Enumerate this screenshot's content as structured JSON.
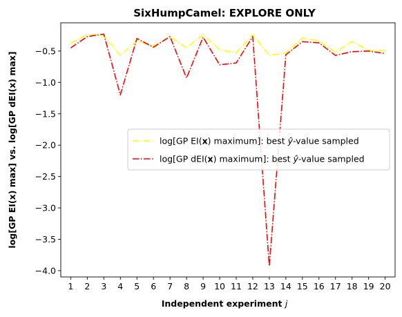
{
  "chart_data": {
    "type": "line",
    "title": "SixHumpCamel: EXPLORE ONLY",
    "xlabel": "Independent experiment j",
    "ylabel": "log[GP EI(x) max] vs. log[GP dEI(x) max]",
    "x": [
      1,
      2,
      3,
      4,
      5,
      6,
      7,
      8,
      9,
      10,
      11,
      12,
      13,
      14,
      15,
      16,
      17,
      18,
      19,
      20
    ],
    "xlim": [
      0.4,
      20.6
    ],
    "ylim": [
      -4.1,
      -0.05
    ],
    "yticks": [
      -4.0,
      -3.5,
      -3.0,
      -2.5,
      -2.0,
      -1.5,
      -1.0,
      -0.5
    ],
    "ytick_labels": [
      "−4.0",
      "−3.5",
      "−3.0",
      "−2.5",
      "−2.0",
      "−1.5",
      "−1.0",
      "−0.5"
    ],
    "grid": false,
    "legend_position": "center-right",
    "series": [
      {
        "name": "log[GP EI(x) maximum]: best ŷ-value sampled",
        "legend_parts": {
          "pre": "log[GP EI(",
          "bold": "x",
          "mid": ") maximum]: best ",
          "hat": "y",
          "post": "-value sampled"
        },
        "color": "#ffff00",
        "linestyle": "dashdot",
        "values": [
          -0.38,
          -0.24,
          -0.25,
          -0.57,
          -0.34,
          -0.42,
          -0.27,
          -0.45,
          -0.24,
          -0.48,
          -0.53,
          -0.24,
          -0.57,
          -0.53,
          -0.29,
          -0.34,
          -0.52,
          -0.35,
          -0.49,
          -0.49
        ]
      },
      {
        "name": "log[GP dEI(x) maximum]: best ŷ-value sampled",
        "legend_parts": {
          "pre": "log[GP dEI(",
          "bold": "x",
          "mid": ") maximum]: best ",
          "hat": "y",
          "post": "-value sampled"
        },
        "color": "#ff0000",
        "linestyle": "dashdot",
        "values": [
          -0.45,
          -0.27,
          -0.23,
          -1.2,
          -0.3,
          -0.44,
          -0.27,
          -0.93,
          -0.28,
          -0.72,
          -0.69,
          -0.27,
          -3.93,
          -0.56,
          -0.35,
          -0.37,
          -0.57,
          -0.51,
          -0.5,
          -0.54
        ]
      }
    ]
  }
}
